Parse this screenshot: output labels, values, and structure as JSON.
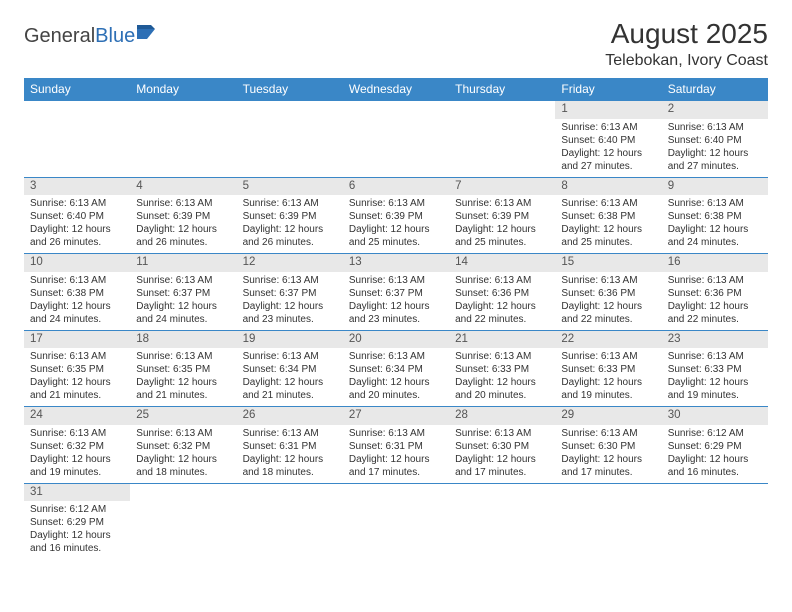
{
  "logo": {
    "part1": "General",
    "part2": "Blue"
  },
  "title": "August 2025",
  "location": "Telebokan, Ivory Coast",
  "headerColor": "#3a87c7",
  "dayHeaders": [
    "Sunday",
    "Monday",
    "Tuesday",
    "Wednesday",
    "Thursday",
    "Friday",
    "Saturday"
  ],
  "weeks": [
    [
      null,
      null,
      null,
      null,
      null,
      {
        "n": "1",
        "sr": "Sunrise: 6:13 AM",
        "ss": "Sunset: 6:40 PM",
        "d1": "Daylight: 12 hours",
        "d2": "and 27 minutes."
      },
      {
        "n": "2",
        "sr": "Sunrise: 6:13 AM",
        "ss": "Sunset: 6:40 PM",
        "d1": "Daylight: 12 hours",
        "d2": "and 27 minutes."
      }
    ],
    [
      {
        "n": "3",
        "sr": "Sunrise: 6:13 AM",
        "ss": "Sunset: 6:40 PM",
        "d1": "Daylight: 12 hours",
        "d2": "and 26 minutes."
      },
      {
        "n": "4",
        "sr": "Sunrise: 6:13 AM",
        "ss": "Sunset: 6:39 PM",
        "d1": "Daylight: 12 hours",
        "d2": "and 26 minutes."
      },
      {
        "n": "5",
        "sr": "Sunrise: 6:13 AM",
        "ss": "Sunset: 6:39 PM",
        "d1": "Daylight: 12 hours",
        "d2": "and 26 minutes."
      },
      {
        "n": "6",
        "sr": "Sunrise: 6:13 AM",
        "ss": "Sunset: 6:39 PM",
        "d1": "Daylight: 12 hours",
        "d2": "and 25 minutes."
      },
      {
        "n": "7",
        "sr": "Sunrise: 6:13 AM",
        "ss": "Sunset: 6:39 PM",
        "d1": "Daylight: 12 hours",
        "d2": "and 25 minutes."
      },
      {
        "n": "8",
        "sr": "Sunrise: 6:13 AM",
        "ss": "Sunset: 6:38 PM",
        "d1": "Daylight: 12 hours",
        "d2": "and 25 minutes."
      },
      {
        "n": "9",
        "sr": "Sunrise: 6:13 AM",
        "ss": "Sunset: 6:38 PM",
        "d1": "Daylight: 12 hours",
        "d2": "and 24 minutes."
      }
    ],
    [
      {
        "n": "10",
        "sr": "Sunrise: 6:13 AM",
        "ss": "Sunset: 6:38 PM",
        "d1": "Daylight: 12 hours",
        "d2": "and 24 minutes."
      },
      {
        "n": "11",
        "sr": "Sunrise: 6:13 AM",
        "ss": "Sunset: 6:37 PM",
        "d1": "Daylight: 12 hours",
        "d2": "and 24 minutes."
      },
      {
        "n": "12",
        "sr": "Sunrise: 6:13 AM",
        "ss": "Sunset: 6:37 PM",
        "d1": "Daylight: 12 hours",
        "d2": "and 23 minutes."
      },
      {
        "n": "13",
        "sr": "Sunrise: 6:13 AM",
        "ss": "Sunset: 6:37 PM",
        "d1": "Daylight: 12 hours",
        "d2": "and 23 minutes."
      },
      {
        "n": "14",
        "sr": "Sunrise: 6:13 AM",
        "ss": "Sunset: 6:36 PM",
        "d1": "Daylight: 12 hours",
        "d2": "and 22 minutes."
      },
      {
        "n": "15",
        "sr": "Sunrise: 6:13 AM",
        "ss": "Sunset: 6:36 PM",
        "d1": "Daylight: 12 hours",
        "d2": "and 22 minutes."
      },
      {
        "n": "16",
        "sr": "Sunrise: 6:13 AM",
        "ss": "Sunset: 6:36 PM",
        "d1": "Daylight: 12 hours",
        "d2": "and 22 minutes."
      }
    ],
    [
      {
        "n": "17",
        "sr": "Sunrise: 6:13 AM",
        "ss": "Sunset: 6:35 PM",
        "d1": "Daylight: 12 hours",
        "d2": "and 21 minutes."
      },
      {
        "n": "18",
        "sr": "Sunrise: 6:13 AM",
        "ss": "Sunset: 6:35 PM",
        "d1": "Daylight: 12 hours",
        "d2": "and 21 minutes."
      },
      {
        "n": "19",
        "sr": "Sunrise: 6:13 AM",
        "ss": "Sunset: 6:34 PM",
        "d1": "Daylight: 12 hours",
        "d2": "and 21 minutes."
      },
      {
        "n": "20",
        "sr": "Sunrise: 6:13 AM",
        "ss": "Sunset: 6:34 PM",
        "d1": "Daylight: 12 hours",
        "d2": "and 20 minutes."
      },
      {
        "n": "21",
        "sr": "Sunrise: 6:13 AM",
        "ss": "Sunset: 6:33 PM",
        "d1": "Daylight: 12 hours",
        "d2": "and 20 minutes."
      },
      {
        "n": "22",
        "sr": "Sunrise: 6:13 AM",
        "ss": "Sunset: 6:33 PM",
        "d1": "Daylight: 12 hours",
        "d2": "and 19 minutes."
      },
      {
        "n": "23",
        "sr": "Sunrise: 6:13 AM",
        "ss": "Sunset: 6:33 PM",
        "d1": "Daylight: 12 hours",
        "d2": "and 19 minutes."
      }
    ],
    [
      {
        "n": "24",
        "sr": "Sunrise: 6:13 AM",
        "ss": "Sunset: 6:32 PM",
        "d1": "Daylight: 12 hours",
        "d2": "and 19 minutes."
      },
      {
        "n": "25",
        "sr": "Sunrise: 6:13 AM",
        "ss": "Sunset: 6:32 PM",
        "d1": "Daylight: 12 hours",
        "d2": "and 18 minutes."
      },
      {
        "n": "26",
        "sr": "Sunrise: 6:13 AM",
        "ss": "Sunset: 6:31 PM",
        "d1": "Daylight: 12 hours",
        "d2": "and 18 minutes."
      },
      {
        "n": "27",
        "sr": "Sunrise: 6:13 AM",
        "ss": "Sunset: 6:31 PM",
        "d1": "Daylight: 12 hours",
        "d2": "and 17 minutes."
      },
      {
        "n": "28",
        "sr": "Sunrise: 6:13 AM",
        "ss": "Sunset: 6:30 PM",
        "d1": "Daylight: 12 hours",
        "d2": "and 17 minutes."
      },
      {
        "n": "29",
        "sr": "Sunrise: 6:13 AM",
        "ss": "Sunset: 6:30 PM",
        "d1": "Daylight: 12 hours",
        "d2": "and 17 minutes."
      },
      {
        "n": "30",
        "sr": "Sunrise: 6:12 AM",
        "ss": "Sunset: 6:29 PM",
        "d1": "Daylight: 12 hours",
        "d2": "and 16 minutes."
      }
    ],
    [
      {
        "n": "31",
        "sr": "Sunrise: 6:12 AM",
        "ss": "Sunset: 6:29 PM",
        "d1": "Daylight: 12 hours",
        "d2": "and 16 minutes."
      },
      null,
      null,
      null,
      null,
      null,
      null
    ]
  ]
}
